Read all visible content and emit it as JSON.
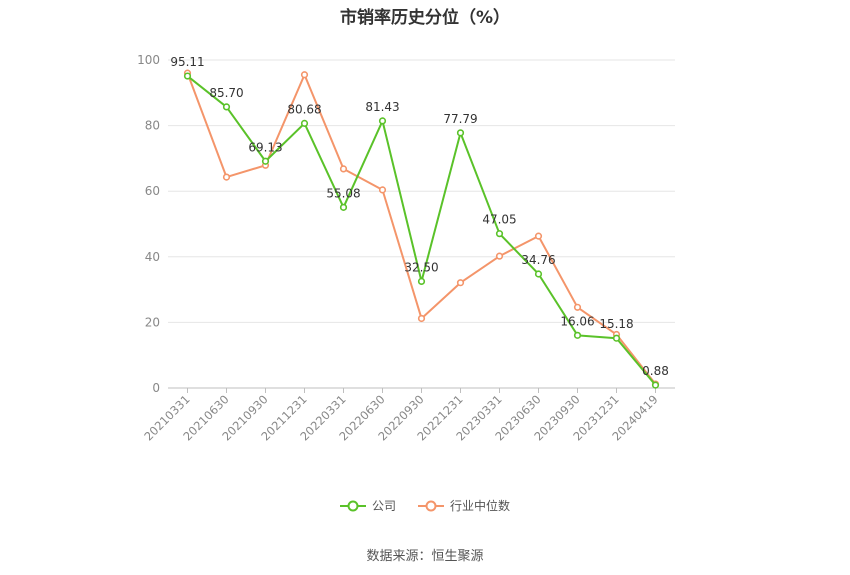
{
  "chart_data": {
    "type": "line",
    "title": "市销率历史分位（%）",
    "categories": [
      "20210331",
      "20210630",
      "20210930",
      "20211231",
      "20220331",
      "20220630",
      "20220930",
      "20221231",
      "20230331",
      "20230630",
      "20230930",
      "20231231",
      "20240419"
    ],
    "series": [
      {
        "name": "公司",
        "color": "#5ac229",
        "values": [
          95.11,
          85.7,
          69.13,
          80.68,
          55.08,
          81.43,
          32.5,
          77.79,
          47.05,
          34.76,
          16.06,
          15.18,
          0.88
        ],
        "labels": [
          "95.11",
          "85.70",
          "69.13",
          "80.68",
          "55.08",
          "81.43",
          "32.50",
          "77.79",
          "47.05",
          "34.76",
          "16.06",
          "15.18",
          "0.88"
        ]
      },
      {
        "name": "行业中位数",
        "color": "#f4956a",
        "values": [
          96,
          64.3,
          67.9,
          95.5,
          66.8,
          60.4,
          21.2,
          32.1,
          40.2,
          46.3,
          24.6,
          16.3,
          1.2
        ]
      }
    ],
    "yticks": [
      0,
      20,
      40,
      60,
      80,
      100
    ],
    "ylim": [
      0,
      100
    ],
    "grid": true,
    "legend_position": "bottom-center"
  },
  "source": "数据来源：恒生聚源"
}
